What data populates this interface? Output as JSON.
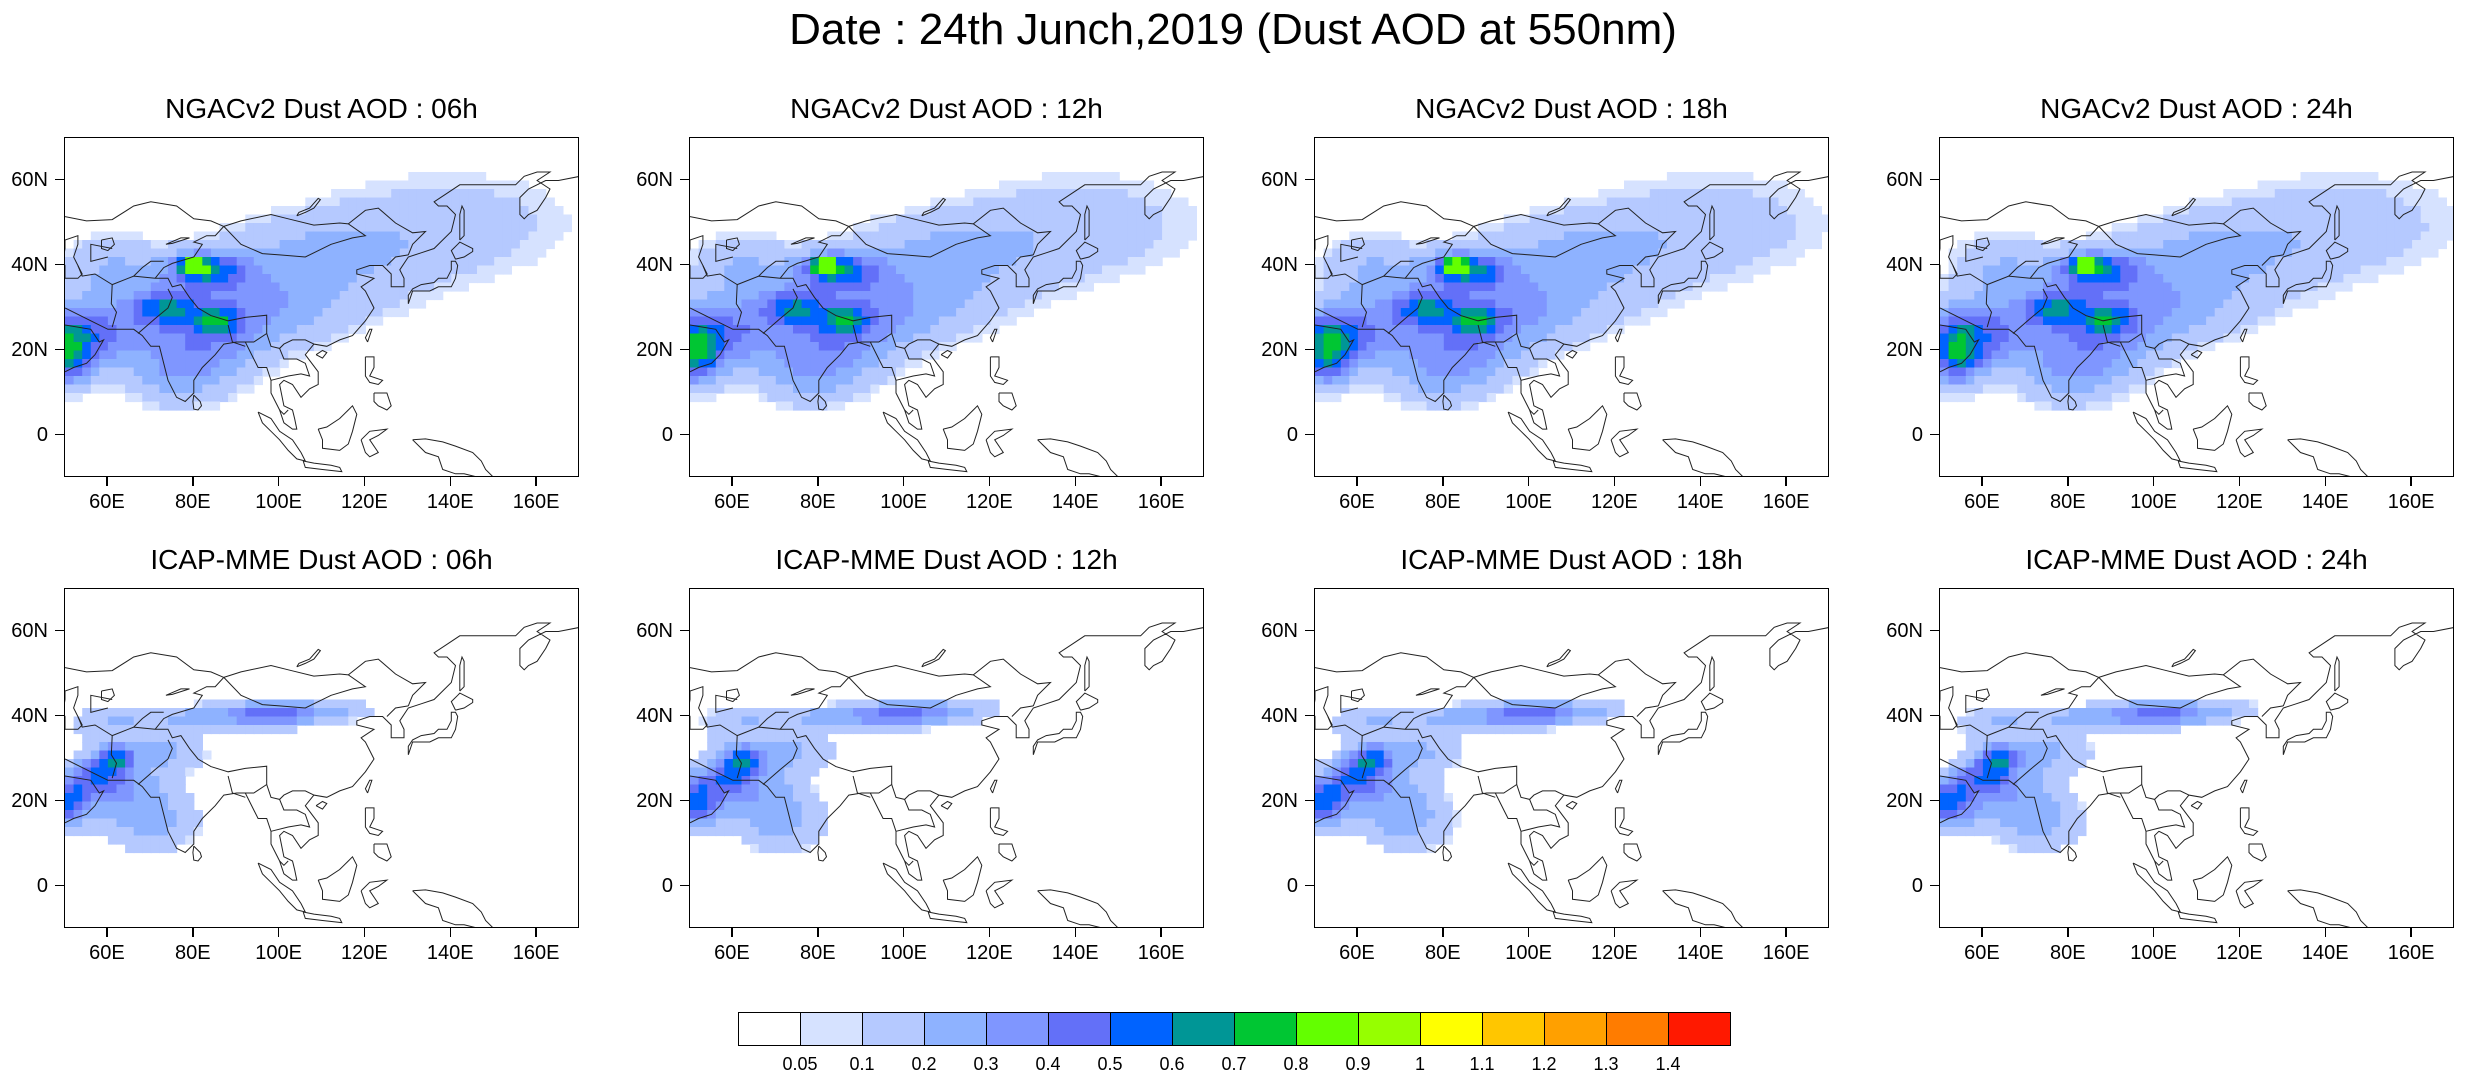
{
  "title": "Date : 24th Junch,2019 (Dust AOD at 550nm)",
  "axes": {
    "x_ticks": [
      "60E",
      "80E",
      "100E",
      "120E",
      "140E",
      "160E"
    ],
    "x_tick_values": [
      60,
      80,
      100,
      120,
      140,
      160
    ],
    "y_ticks": [
      "60N",
      "40N",
      "20N",
      "0"
    ],
    "y_tick_values": [
      60,
      40,
      20,
      0
    ],
    "lon_range": [
      50,
      170
    ],
    "lat_range": [
      -10,
      70
    ]
  },
  "panels": [
    {
      "title": "NGACv2 Dust AOD : 06h",
      "row": 0,
      "col": 0,
      "model": "ngac"
    },
    {
      "title": "NGACv2 Dust AOD : 12h",
      "row": 0,
      "col": 1,
      "model": "ngac"
    },
    {
      "title": "NGACv2 Dust AOD : 18h",
      "row": 0,
      "col": 2,
      "model": "ngac"
    },
    {
      "title": "NGACv2 Dust AOD : 24h",
      "row": 0,
      "col": 3,
      "model": "ngac"
    },
    {
      "title": "ICAP-MME Dust AOD : 06h",
      "row": 1,
      "col": 0,
      "model": "icap"
    },
    {
      "title": "ICAP-MME Dust AOD : 12h",
      "row": 1,
      "col": 1,
      "model": "icap"
    },
    {
      "title": "ICAP-MME Dust AOD : 18h",
      "row": 1,
      "col": 2,
      "model": "icap"
    },
    {
      "title": "ICAP-MME Dust AOD : 24h",
      "row": 1,
      "col": 3,
      "model": "icap"
    }
  ],
  "colorbar": {
    "labels": [
      "0.05",
      "0.1",
      "0.2",
      "0.3",
      "0.4",
      "0.5",
      "0.6",
      "0.7",
      "0.8",
      "0.9",
      "1",
      "1.1",
      "1.2",
      "1.3",
      "1.4"
    ],
    "colors": [
      "#ffffff",
      "#d6e2ff",
      "#b5c9ff",
      "#8eb2ff",
      "#7f96ff",
      "#6370f8",
      "#0063ff",
      "#009696",
      "#00c633",
      "#63ff00",
      "#96ff00",
      "#ffff00",
      "#ffc600",
      "#ffa000",
      "#ff7c00",
      "#ff1900"
    ]
  }
}
